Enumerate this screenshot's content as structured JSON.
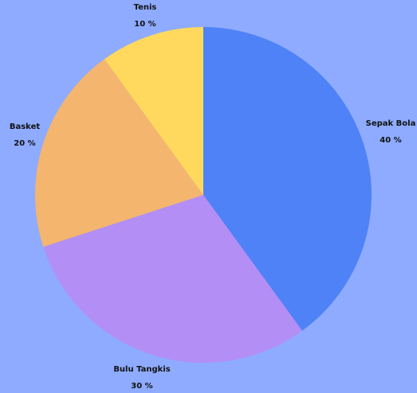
{
  "colors": {
    "background": "#8eabff"
  },
  "chart_data": {
    "type": "pie",
    "title": "",
    "start_angle_deg": 0,
    "direction": "clockwise",
    "slices": [
      {
        "label": "Sepak Bola",
        "value": 40,
        "display": "40 %",
        "color": "#4f82f6"
      },
      {
        "label": "Bulu Tangkis",
        "value": 30,
        "display": "30 %",
        "color": "#b38ef5"
      },
      {
        "label": "Basket",
        "value": 20,
        "display": "20 %",
        "color": "#f4b56e"
      },
      {
        "label": "Tenis",
        "value": 10,
        "display": "10 %",
        "color": "#ffd95d"
      }
    ]
  }
}
